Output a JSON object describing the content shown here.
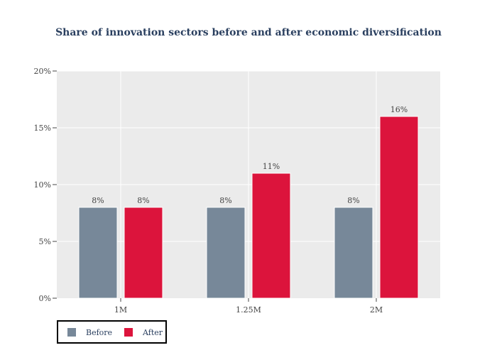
{
  "chart_data": {
    "type": "bar",
    "title": "Share of innovation sectors before and after economic diversification",
    "xlabel": "",
    "ylabel": "",
    "categories": [
      "1M",
      "1.25M",
      "2M"
    ],
    "series": [
      {
        "name": "Before",
        "values": [
          8,
          8,
          8
        ],
        "labels": [
          "8%",
          "8%",
          "8%"
        ],
        "color": "#778899"
      },
      {
        "name": "After",
        "values": [
          8,
          11,
          16
        ],
        "labels": [
          "8%",
          "11%",
          "16%"
        ],
        "color": "#dc143c"
      }
    ],
    "ylim": [
      0,
      20
    ],
    "yticks": [
      0,
      5,
      10,
      15,
      20
    ],
    "ytick_labels": [
      "0%",
      "5%",
      "10%",
      "15%",
      "20%"
    ],
    "grid": true,
    "legend_position": "bottom-left",
    "plot_background": "#ebebeb"
  }
}
